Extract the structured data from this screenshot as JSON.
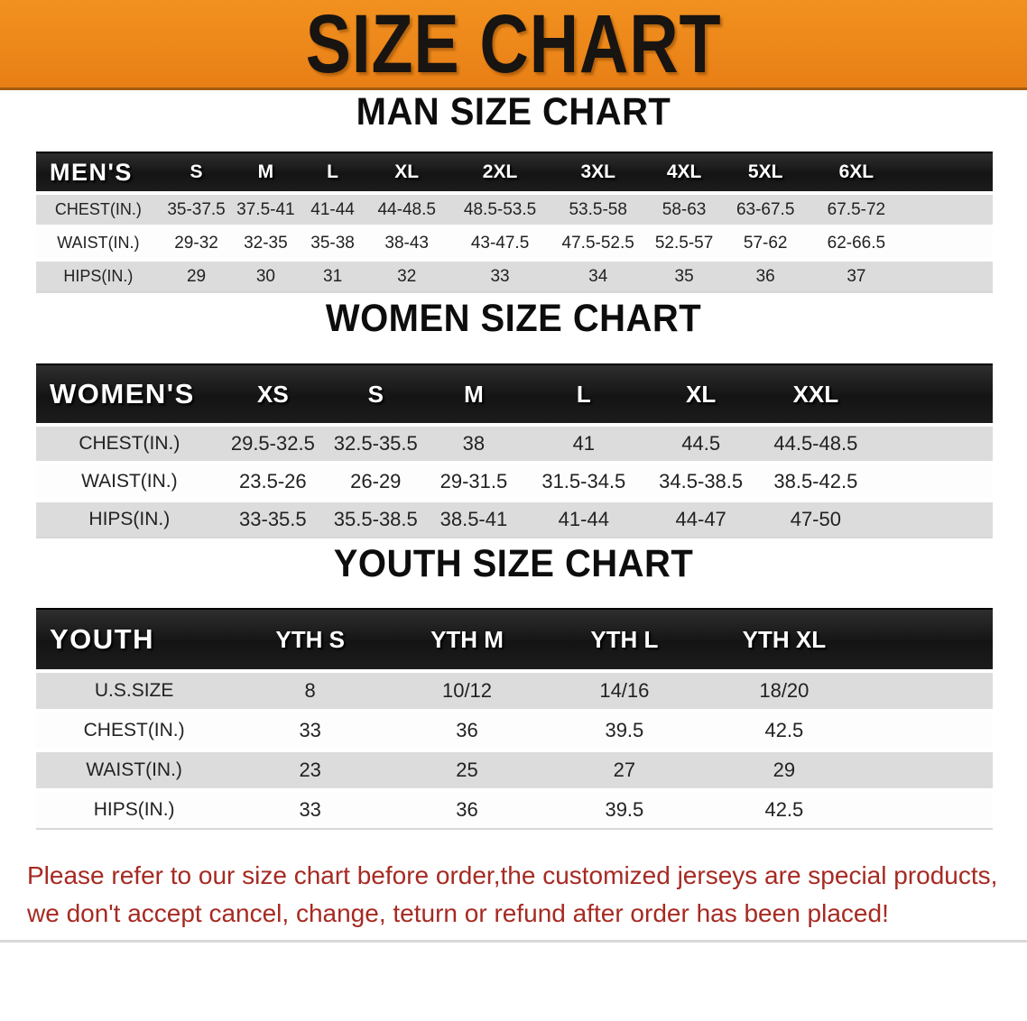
{
  "banner": {
    "title": "SIZE CHART"
  },
  "colors": {
    "banner_orange": "#E8831F",
    "header_black": "#1B1B1B",
    "row_gray": "#DCDCDC",
    "row_white": "#FDFDFD",
    "note_red": "#A62A22"
  },
  "sections": [
    {
      "id": "men",
      "heading": "MAN SIZE CHART",
      "table": {
        "label": "MEN'S",
        "columns": [
          "S",
          "M",
          "L",
          "XL",
          "2XL",
          "3XL",
          "4XL",
          "5XL",
          "6XL"
        ],
        "rows": [
          {
            "label": "CHEST(IN.)",
            "values": [
              "35-37.5",
              "37.5-41",
              "41-44",
              "44-48.5",
              "48.5-53.5",
              "53.5-58",
              "58-63",
              "63-67.5",
              "67.5-72"
            ]
          },
          {
            "label": "WAIST(IN.)",
            "values": [
              "29-32",
              "32-35",
              "35-38",
              "38-43",
              "43-47.5",
              "47.5-52.5",
              "52.5-57",
              "57-62",
              "62-66.5"
            ]
          },
          {
            "label": "HIPS(IN.)",
            "values": [
              "29",
              "30",
              "31",
              "32",
              "33",
              "34",
              "35",
              "36",
              "37"
            ]
          }
        ]
      }
    },
    {
      "id": "women",
      "heading": "WOMEN SIZE CHART",
      "table": {
        "label": "WOMEN'S",
        "columns": [
          "XS",
          "S",
          "M",
          "L",
          "XL",
          "XXL"
        ],
        "rows": [
          {
            "label": "CHEST(IN.)",
            "values": [
              "29.5-32.5",
              "32.5-35.5",
              "38",
              "41",
              "44.5",
              "44.5-48.5"
            ]
          },
          {
            "label": "WAIST(IN.)",
            "values": [
              "23.5-26",
              "26-29",
              "29-31.5",
              "31.5-34.5",
              "34.5-38.5",
              "38.5-42.5"
            ]
          },
          {
            "label": "HIPS(IN.)",
            "values": [
              "33-35.5",
              "35.5-38.5",
              "38.5-41",
              "41-44",
              "44-47",
              "47-50"
            ]
          }
        ]
      }
    },
    {
      "id": "youth",
      "heading": "YOUTH SIZE CHART",
      "table": {
        "label": "YOUTH",
        "columns": [
          "YTH S",
          "YTH M",
          "YTH L",
          "YTH XL"
        ],
        "rows": [
          {
            "label": "U.S.SIZE",
            "values": [
              "8",
              "10/12",
              "14/16",
              "18/20"
            ]
          },
          {
            "label": "CHEST(IN.)",
            "values": [
              "33",
              "36",
              "39.5",
              "42.5"
            ]
          },
          {
            "label": "WAIST(IN.)",
            "values": [
              "23",
              "25",
              "27",
              "29"
            ]
          },
          {
            "label": "HIPS(IN.)",
            "values": [
              "33",
              "36",
              "39.5",
              "42.5"
            ]
          }
        ]
      }
    }
  ],
  "note": {
    "line1": "Please refer to our size chart before order,the customized jerseys are special products,",
    "line2": "we don't accept cancel, change, teturn or refund after order has been placed!"
  }
}
